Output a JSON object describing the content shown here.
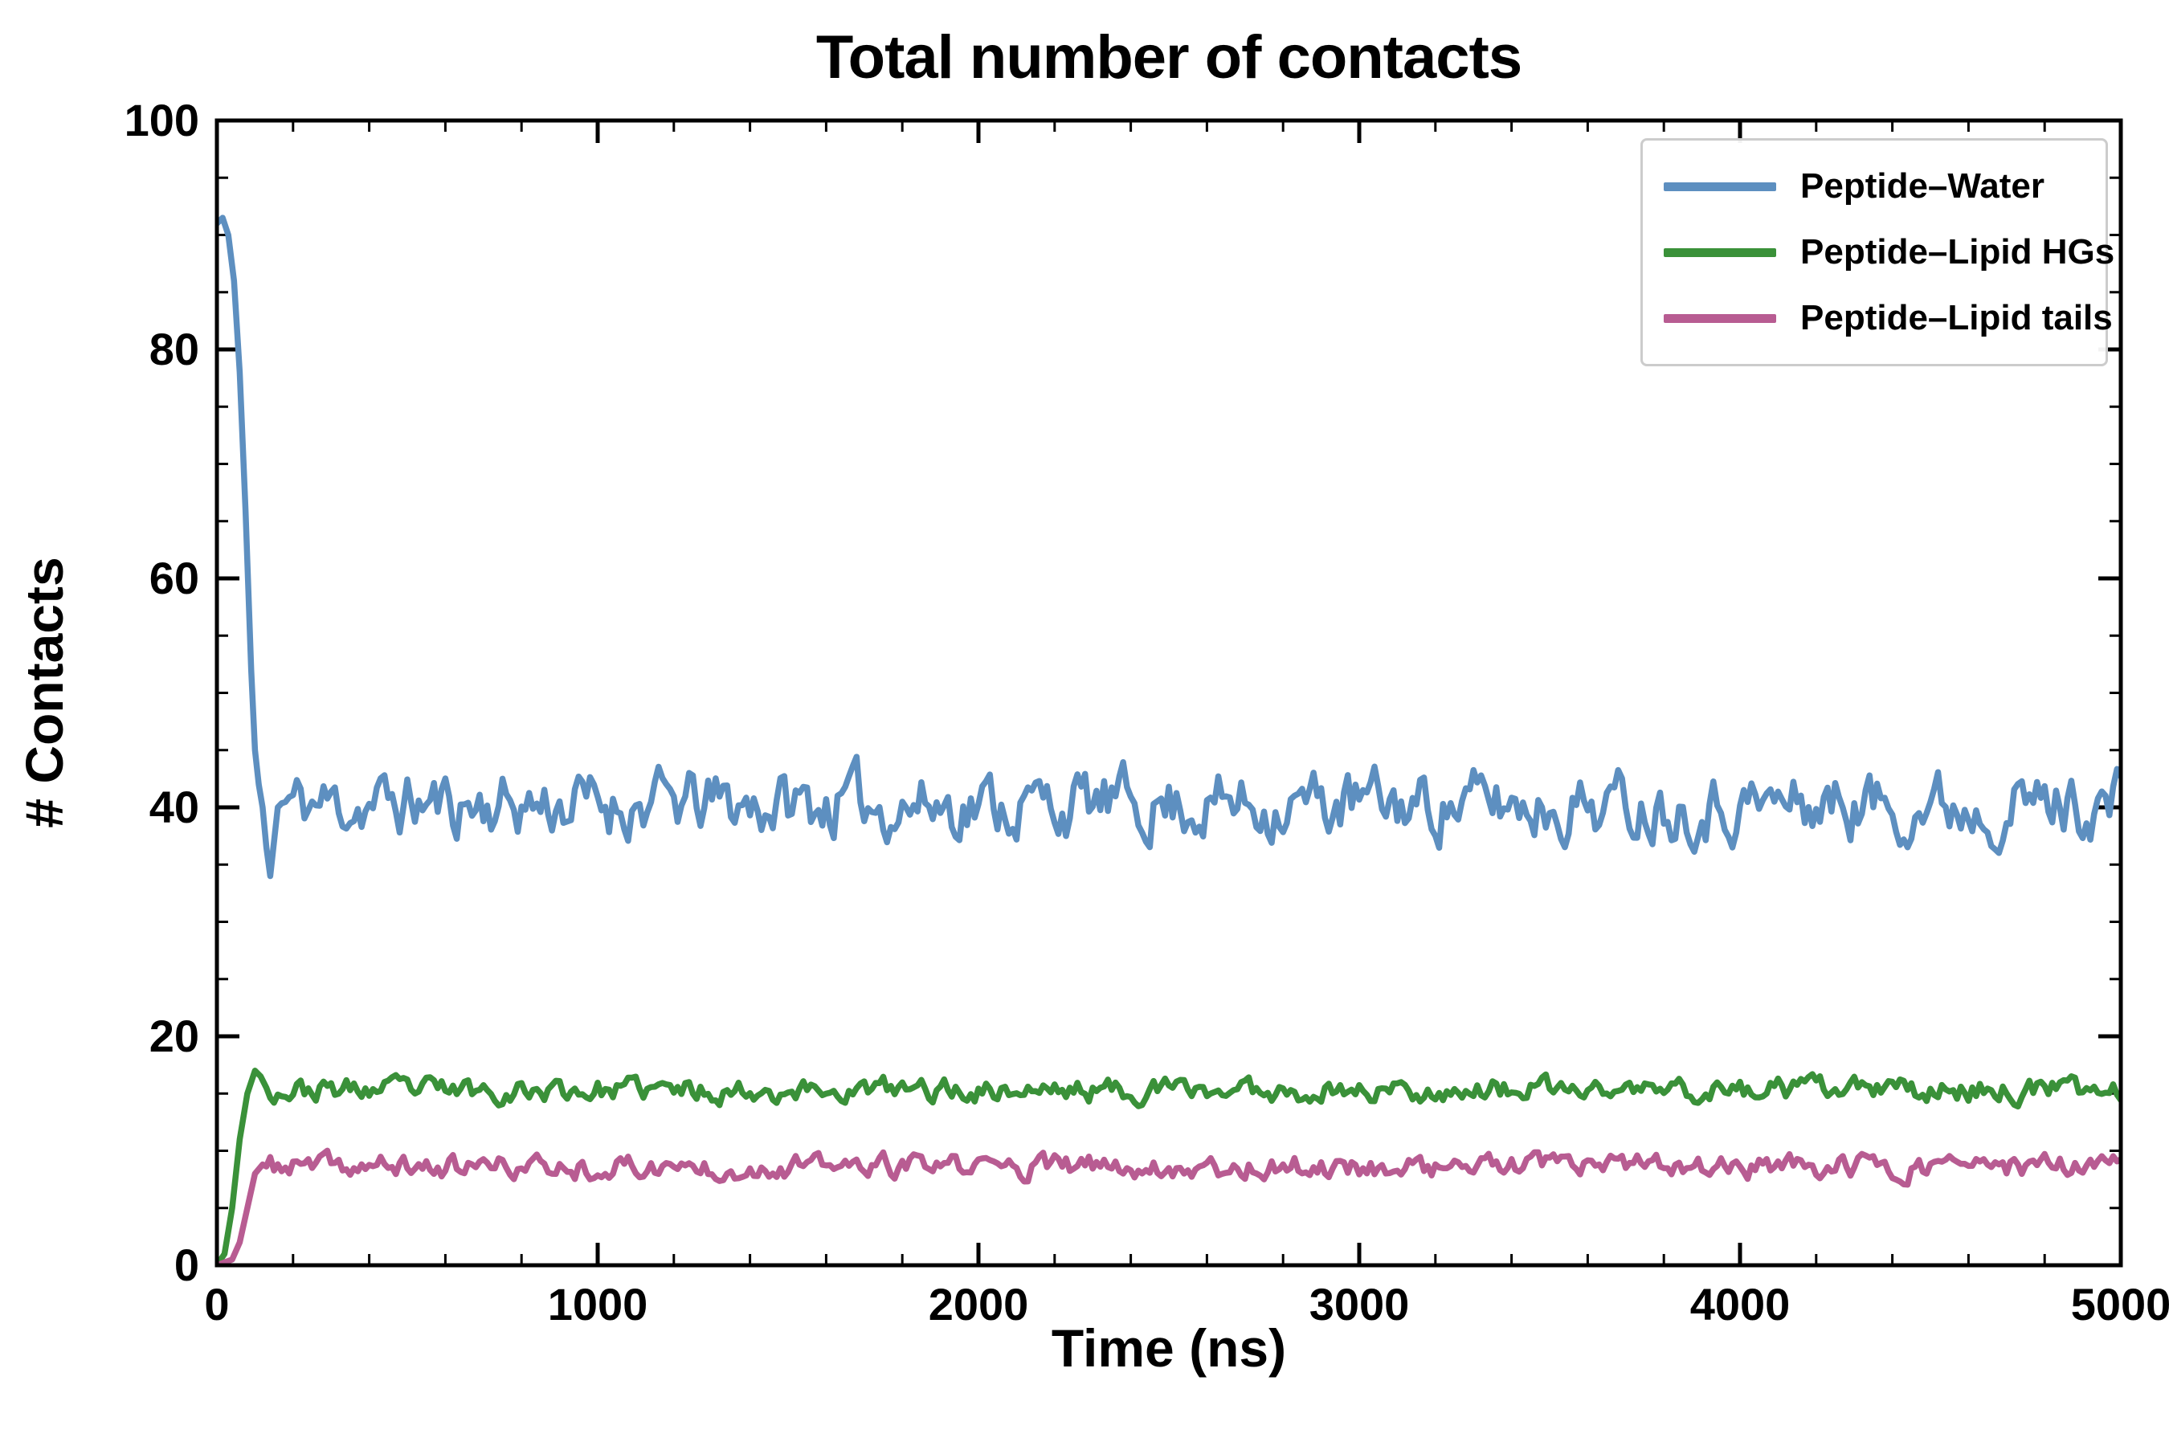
{
  "chart_data": {
    "type": "line",
    "title": "Total number of contacts",
    "xlabel": "Time (ns)",
    "ylabel": "# Contacts",
    "xlim": [
      0,
      5000
    ],
    "ylim": [
      0,
      100
    ],
    "xticks": [
      0,
      1000,
      2000,
      3000,
      4000,
      5000
    ],
    "yticks": [
      0,
      20,
      40,
      60,
      80,
      100
    ],
    "x_minor_step": 200,
    "y_minor_step": 5,
    "grid": false,
    "legend_position": "upper right",
    "axis_color": "#000000",
    "series": [
      {
        "name": "Peptide–Water",
        "color": "#5d8fc0",
        "seed": 11,
        "transient": [
          [
            0,
            91
          ],
          [
            15,
            91.5
          ],
          [
            30,
            90
          ],
          [
            45,
            86
          ],
          [
            60,
            78
          ],
          [
            75,
            66
          ],
          [
            90,
            52
          ],
          [
            100,
            45
          ],
          [
            110,
            42
          ],
          [
            120,
            40
          ],
          [
            130,
            36.5
          ],
          [
            140,
            34
          ],
          [
            150,
            37
          ],
          [
            160,
            40
          ]
        ],
        "steady": {
          "from": 160,
          "mean": 40.3,
          "amplitude": 2.4,
          "min": 34,
          "max": 47
        }
      },
      {
        "name": "Peptide–Lipid HGs",
        "color": "#3a9139",
        "seed": 23,
        "transient": [
          [
            0,
            0
          ],
          [
            20,
            1
          ],
          [
            40,
            5
          ],
          [
            60,
            11
          ],
          [
            80,
            15
          ],
          [
            100,
            17
          ],
          [
            115,
            16.5
          ],
          [
            130,
            15.5
          ]
        ],
        "steady": {
          "from": 130,
          "mean": 15.3,
          "amplitude": 0.85,
          "min": 13,
          "max": 18
        }
      },
      {
        "name": "Peptide–Lipid tails",
        "color": "#b85c92",
        "seed": 37,
        "transient": [
          [
            0,
            0
          ],
          [
            40,
            0.5
          ],
          [
            60,
            2
          ],
          [
            80,
            5
          ],
          [
            100,
            8
          ],
          [
            120,
            8.8
          ]
        ],
        "steady": {
          "from": 120,
          "mean": 8.6,
          "amplitude": 0.85,
          "min": 7,
          "max": 11
        }
      }
    ]
  }
}
